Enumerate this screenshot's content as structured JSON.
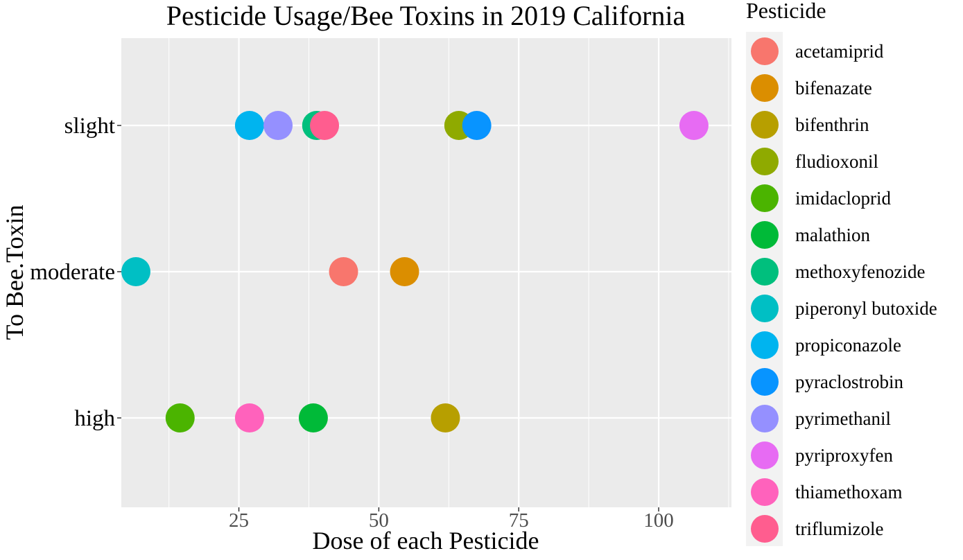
{
  "chart_data": {
    "type": "scatter",
    "title": "Pesticide Usage/Bee Toxins in 2019 California",
    "xlabel": "Dose of each Pesticide",
    "ylabel": "To Bee.Toxin",
    "xlim": [
      4,
      113
    ],
    "x_ticks": [
      25,
      50,
      75,
      100
    ],
    "y_categories": [
      "slight",
      "moderate",
      "high"
    ],
    "grid": true,
    "legend_position": "right",
    "legend_title": "Pesticide",
    "series": [
      {
        "name": "acetamiprid",
        "color": "#F8766D",
        "points": [
          {
            "x": 43.7,
            "y": "moderate"
          }
        ]
      },
      {
        "name": "bifenazate",
        "color": "#DB8E00",
        "points": [
          {
            "x": 54.6,
            "y": "moderate"
          }
        ]
      },
      {
        "name": "bifenthrin",
        "color": "#B79F00",
        "points": [
          {
            "x": 61.9,
            "y": "high"
          }
        ]
      },
      {
        "name": "fludioxonil",
        "color": "#8FAA00",
        "points": [
          {
            "x": 64.3,
            "y": "slight"
          }
        ]
      },
      {
        "name": "imidacloprid",
        "color": "#4BB400",
        "points": [
          {
            "x": 14.5,
            "y": "high"
          }
        ]
      },
      {
        "name": "malathion",
        "color": "#00BA38",
        "points": [
          {
            "x": 38.3,
            "y": "high"
          }
        ]
      },
      {
        "name": "methoxyfenozide",
        "color": "#00BF7D",
        "points": [
          {
            "x": 38.9,
            "y": "slight"
          }
        ]
      },
      {
        "name": "piperonyl butoxide",
        "color": "#00BFC4",
        "points": [
          {
            "x": 6.6,
            "y": "moderate"
          }
        ]
      },
      {
        "name": "propiconazole",
        "color": "#00B4EF",
        "points": [
          {
            "x": 26.9,
            "y": "slight"
          }
        ]
      },
      {
        "name": "pyraclostrobin",
        "color": "#0894FF",
        "points": [
          {
            "x": 67.5,
            "y": "slight"
          }
        ]
      },
      {
        "name": "pyrimethanil",
        "color": "#9590FF",
        "points": [
          {
            "x": 32.0,
            "y": "slight"
          }
        ]
      },
      {
        "name": "pyriproxyfen",
        "color": "#E76BF3",
        "points": [
          {
            "x": 106.3,
            "y": "slight"
          }
        ]
      },
      {
        "name": "thiamethoxam",
        "color": "#FF62BC",
        "points": [
          {
            "x": 26.9,
            "y": "high"
          }
        ]
      },
      {
        "name": "triflumizole",
        "color": "#FF5D8F",
        "points": [
          {
            "x": 40.3,
            "y": "slight"
          }
        ]
      }
    ]
  }
}
